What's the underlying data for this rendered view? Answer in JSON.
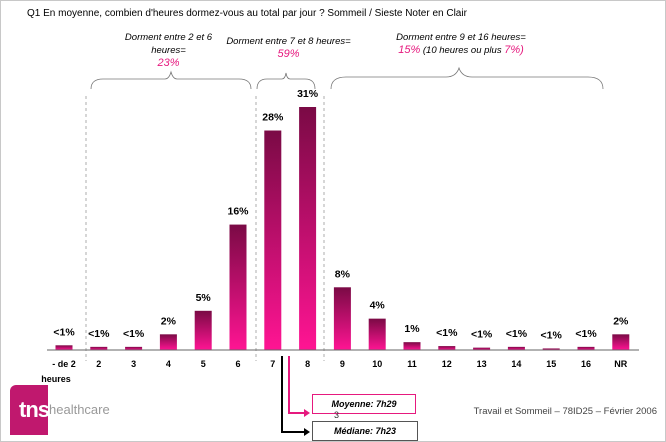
{
  "title": "Q1 En moyenne, combien d'heures dormez-vous au total par jour  ?  Sommeil / Sieste Noter en Clair",
  "annotations": {
    "group1": {
      "line1": "Dorment entre 2 et 6",
      "line2": "heures=",
      "value": "23%"
    },
    "group2": {
      "line1": "Dorment entre 7 et 8 heures=",
      "value": "59%"
    },
    "group3": {
      "line1": "Dorment entre 9 et 16 heures=",
      "value": "15%",
      "extra_pre": " (10 heures ou plus ",
      "extra_value": "7%)"
    }
  },
  "chart_data": {
    "type": "bar",
    "title": "Q1 En moyenne, combien d'heures dormez-vous au total par jour ?",
    "xlabel": "",
    "ylabel": "",
    "categories": [
      "- de 2 heures",
      "2",
      "3",
      "4",
      "5",
      "6",
      "7",
      "8",
      "9",
      "10",
      "11",
      "12",
      "13",
      "14",
      "15",
      "16",
      "NR"
    ],
    "values": [
      0.6,
      0.4,
      0.4,
      2,
      5,
      16,
      28,
      31,
      8,
      4,
      1,
      0.5,
      0.3,
      0.4,
      0.2,
      0.4,
      2
    ],
    "labels": [
      "<1%",
      "<1%",
      "<1%",
      "2%",
      "5%",
      "16%",
      "28%",
      "31%",
      "8%",
      "4%",
      "1%",
      "<1%",
      "<1%",
      "<1%",
      "<1%",
      "<1%",
      "2%"
    ],
    "ylim": [
      0,
      32
    ],
    "colors": {
      "bar_top": "#7a0a45",
      "bar_bottom": "#ff1493"
    }
  },
  "markers": {
    "moyenne": "Moyenne: 7h29",
    "mediane": "Médiane: 7h23"
  },
  "page_number": "3",
  "footer": "Travail et Sommeil – 78ID25 – Février 2006",
  "logo": {
    "tns": "tns",
    "healthcare": "healthcare"
  }
}
